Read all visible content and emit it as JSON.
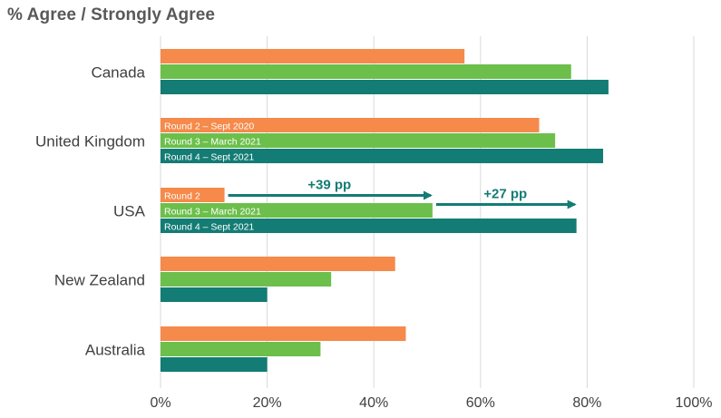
{
  "title": "% Agree / Strongly Agree",
  "chart_data": {
    "type": "bar",
    "orientation": "horizontal",
    "title": "% Agree / Strongly Agree",
    "categories": [
      "Canada",
      "United Kingdom",
      "USA",
      "New Zealand",
      "Australia"
    ],
    "series": [
      {
        "name": "Round 2 – Sept 2020",
        "color": "#f58a4b",
        "values": [
          57,
          71,
          12,
          44,
          46
        ]
      },
      {
        "name": "Round 3 – March 2021",
        "color": "#6cbf4b",
        "values": [
          77,
          74,
          51,
          32,
          30
        ]
      },
      {
        "name": "Round 4 – Sept 2021",
        "color": "#137c74",
        "values": [
          84,
          83,
          78,
          20,
          20
        ]
      }
    ],
    "xlim": [
      0,
      100
    ],
    "xticks": [
      "0%",
      "20%",
      "40%",
      "60%",
      "80%",
      "100%"
    ],
    "grid": true,
    "in_bar_labels": [
      {
        "category": "United Kingdom",
        "labels": [
          "Round 2 – Sept 2020",
          "Round 3 – March 2021",
          "Round 4 – Sept 2021"
        ]
      },
      {
        "category": "USA",
        "labels": [
          "Round 2",
          "Round 3 – March 2021",
          "Round 4 – Sept 2021"
        ]
      }
    ],
    "annotations": [
      {
        "text": "+39 pp",
        "category": "USA",
        "from": 12,
        "to": 51
      },
      {
        "text": "+27 pp",
        "category": "USA",
        "from": 51,
        "to": 78
      }
    ]
  }
}
